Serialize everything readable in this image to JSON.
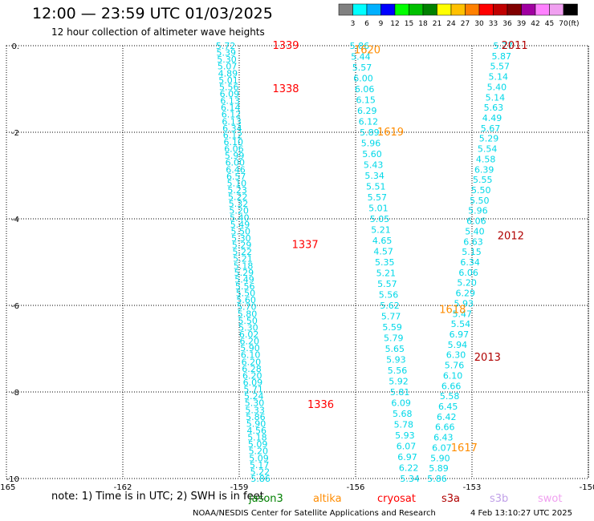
{
  "title": "12:00 — 23:59 UTC 01/03/2025",
  "subtitle": "12 hour collection of altimeter wave heights",
  "note": "note:  1) Time is in UTC; 2) SWH is in feet",
  "credit": "NOAA/NESDIS Center for Satellite Applications and Research",
  "timestamp": "4 Feb 13:10:27 UTC 2025",
  "missions": [
    {
      "name": "jason3",
      "color": "#008000"
    },
    {
      "name": "altika",
      "color": "#ff8c00"
    },
    {
      "name": "cryosat",
      "color": "#ff0000"
    },
    {
      "name": "s3a",
      "color": "#b00000"
    },
    {
      "name": "s3b",
      "color": "#c0a0e8"
    },
    {
      "name": "swot",
      "color": "#f0a0f0"
    }
  ],
  "colorbar": {
    "labels": [
      "3",
      "6",
      "9",
      "12",
      "15",
      "18",
      "21",
      "24",
      "27",
      "30",
      "33",
      "36",
      "39",
      "42",
      "45",
      "70"
    ],
    "unit": "(ft)",
    "colors": [
      "#808080",
      "#00ffff",
      "#00b0ff",
      "#0000ff",
      "#00ff00",
      "#00c000",
      "#008000",
      "#ffff00",
      "#ffc000",
      "#ff8000",
      "#ff0000",
      "#c00000",
      "#800000",
      "#a000a0",
      "#ff80ff",
      "#f0a0f0",
      "#000000"
    ]
  },
  "chart_data": {
    "type": "scatter",
    "title": "12:00 — 23:59 UTC 01/03/2025",
    "subtitle": "12 hour collection of altimeter wave heights",
    "xlabel": "",
    "ylabel": "",
    "xlim": [
      -165,
      -150
    ],
    "ylim": [
      -10,
      0
    ],
    "x_ticks": [
      -165,
      -162,
      -159,
      -156,
      -153,
      -150
    ],
    "y_ticks": [
      0,
      -2,
      -4,
      -6,
      -8,
      -10
    ],
    "grid": true,
    "tracks": [
      {
        "pass": "1339",
        "mission": "cryosat",
        "color": "#ff0000",
        "label_at": [
          -157.8,
          0.0
        ]
      },
      {
        "pass": "1338",
        "mission": "cryosat",
        "color": "#ff0000",
        "label_at": [
          -157.8,
          -1.0
        ]
      },
      {
        "pass": "1337",
        "mission": "cryosat",
        "color": "#ff0000",
        "label_at": [
          -157.3,
          -4.6
        ]
      },
      {
        "pass": "1336",
        "mission": "cryosat",
        "color": "#ff0000",
        "label_at": [
          -156.9,
          -8.3
        ]
      },
      {
        "pass": "1620",
        "mission": "altika",
        "color": "#ff8c00",
        "label_at": [
          -155.7,
          -0.1
        ]
      },
      {
        "pass": "1619",
        "mission": "altika",
        "color": "#ff8c00",
        "label_at": [
          -155.1,
          -2.0
        ]
      },
      {
        "pass": "1618",
        "mission": "altika",
        "color": "#ff8c00",
        "label_at": [
          -153.5,
          -6.1
        ]
      },
      {
        "pass": "1617",
        "mission": "altika",
        "color": "#ff8c00",
        "label_at": [
          -153.2,
          -9.3
        ]
      },
      {
        "pass": "2011",
        "mission": "s3a",
        "color": "#b00000",
        "label_at": [
          -151.9,
          0.0
        ]
      },
      {
        "pass": "2012",
        "mission": "s3a",
        "color": "#b00000",
        "label_at": [
          -152.0,
          -4.4
        ]
      },
      {
        "pass": "2013",
        "mission": "s3a",
        "color": "#b00000",
        "label_at": [
          -152.6,
          -7.2
        ]
      }
    ],
    "wave_heights": [
      {
        "track": "cryosat-1339-1336",
        "color": "#00d8e8",
        "lon_start": -159.35,
        "lon_end": -158.45,
        "lat_start": 0.0,
        "lat_end": -10.0,
        "values": [
          "5.72",
          "5.39",
          "5.30",
          "5.07",
          "4.89",
          "5.01",
          "5.56",
          "6.09",
          "6.13",
          "6.14",
          "6.12",
          "6.13",
          "6.34",
          "6.12",
          "6.10",
          "6.06",
          "5.99",
          "6.00",
          "6.46",
          "6.57",
          "5.10",
          "5.23",
          "5.22",
          "5.32",
          "5.20",
          "5.40",
          "5.49",
          "5.50",
          "5.30",
          "5.29",
          "5.22",
          "5.21",
          "5.18",
          "5.29",
          "5.49",
          "5.56",
          "5.50",
          "5.60",
          "5.70",
          "5.80",
          "5.50",
          "5.30",
          "6.02",
          "6.20",
          "5.90",
          "6.10",
          "6.20",
          "6.28",
          "6.20",
          "6.09",
          "5.71",
          "5.24",
          "5.30",
          "5.33",
          "5.86",
          "5.90",
          "4.56",
          "5.18",
          "5.09",
          "5.20",
          "5.09",
          "5.17",
          "5.22",
          "5.86"
        ]
      },
      {
        "track": "altika-1620-1617",
        "color": "#00d8e8",
        "lon_start": -155.9,
        "lon_end": -154.6,
        "lat_start": 0.0,
        "lat_end": -10.0,
        "values": [
          "5.86",
          "5.44",
          "5.57",
          "6.00",
          "6.06",
          "6.15",
          "6.29",
          "6.12",
          "5.89",
          "5.96",
          "5.60",
          "5.43",
          "5.34",
          "5.51",
          "5.57",
          "5.01",
          "5.05",
          "5.21",
          "4.65",
          "4.57",
          "5.35",
          "5.21",
          "5.57",
          "5.56",
          "5.62",
          "5.77",
          "5.59",
          "5.79",
          "5.65",
          "5.93",
          "5.56",
          "5.92",
          "5.81",
          "6.09",
          "5.68",
          "5.78",
          "5.93",
          "6.07",
          "6.97",
          "6.22",
          "5.34"
        ]
      },
      {
        "track": "s3a-2011-2013",
        "color": "#00d8e8",
        "lon_start": -152.2,
        "lon_end": -153.9,
        "lat_start": 0.0,
        "lat_end": -10.0,
        "values": [
          "5.77",
          "5.87",
          "5.57",
          "5.14",
          "5.40",
          "5.14",
          "5.63",
          "4.49",
          "5.67",
          "5.29",
          "5.54",
          "4.58",
          "6.39",
          "5.55",
          "5.50",
          "5.50",
          "5.96",
          "6.06",
          "5.40",
          "6.63",
          "5.15",
          "6.34",
          "6.06",
          "5.20",
          "6.29",
          "5.93",
          "5.47",
          "5.54",
          "6.97",
          "5.94",
          "6.30",
          "5.76",
          "6.10",
          "6.66",
          "5.58",
          "6.45",
          "6.42",
          "6.66",
          "6.43",
          "6.07",
          "5.90",
          "5.89",
          "5.86"
        ]
      }
    ]
  }
}
